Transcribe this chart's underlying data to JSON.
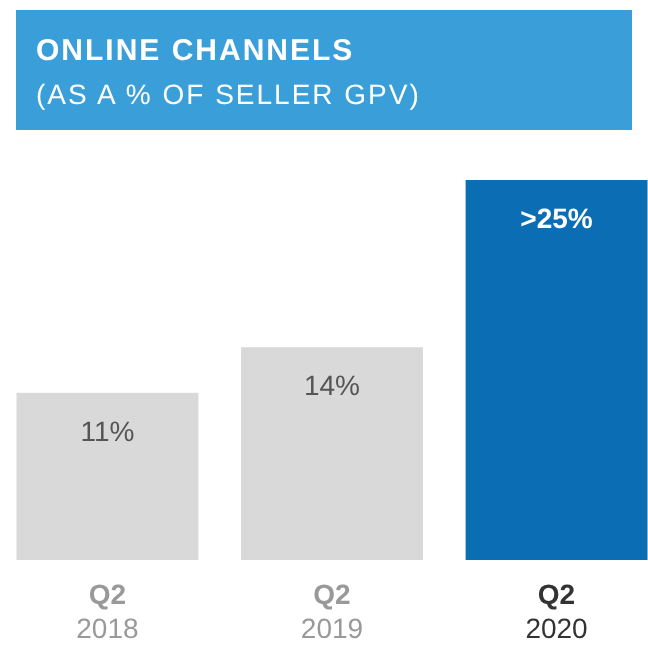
{
  "chart_data": {
    "type": "bar",
    "title": "ONLINE CHANNELS",
    "subtitle": "(AS A % OF SELLER GPV)",
    "categories": [
      "Q2\n2018",
      "Q2\n2019",
      "Q2\n2020"
    ],
    "values": [
      11,
      14,
      25
    ],
    "colors": [
      "#d9d9d9",
      "#d9d9d9",
      "#0b6db3"
    ],
    "value_labels": [
      "11%",
      "14%",
      ">25%"
    ]
  }
}
